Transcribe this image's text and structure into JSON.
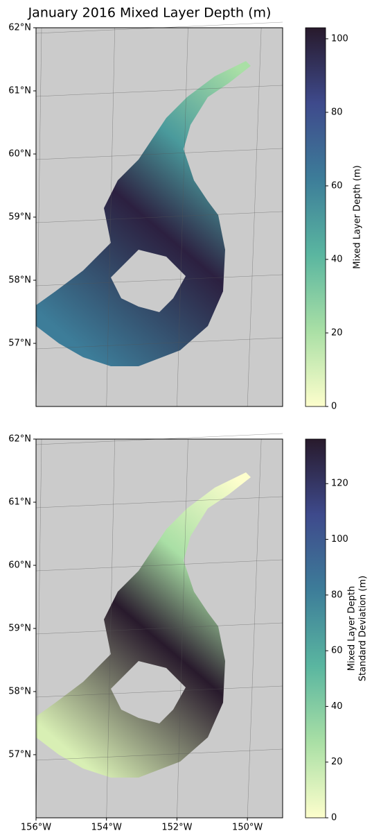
{
  "title": "January 2016 Mixed Layer Depth (m)",
  "panels": [
    {
      "ylim": [
        56,
        62
      ],
      "xlim": [
        -156,
        -149
      ],
      "yticks": [
        {
          "value": 62,
          "label": "62°N"
        },
        {
          "value": 61,
          "label": "61°N"
        },
        {
          "value": 60,
          "label": "60°N"
        },
        {
          "value": 59,
          "label": "59°N"
        },
        {
          "value": 58,
          "label": "58°N"
        },
        {
          "value": 57,
          "label": "57°N"
        }
      ],
      "xticks": [
        -156,
        -154,
        -152,
        -150
      ],
      "colorbar": {
        "label": [
          "Mixed Layer Depth (m)"
        ],
        "lim": [
          0,
          103
        ],
        "ticks": [
          0,
          20,
          40,
          60,
          80,
          100
        ]
      }
    },
    {
      "ylim": [
        56,
        62
      ],
      "xlim": [
        -156,
        -149
      ],
      "yticks": [
        {
          "value": 62,
          "label": "62°N"
        },
        {
          "value": 61,
          "label": "61°N"
        },
        {
          "value": 60,
          "label": "60°N"
        },
        {
          "value": 59,
          "label": "59°N"
        },
        {
          "value": 58,
          "label": "58°N"
        },
        {
          "value": 57,
          "label": "57°N"
        }
      ],
      "xticks": [
        {
          "value": -156,
          "label": "156°W"
        },
        {
          "value": -154,
          "label": "154°W"
        },
        {
          "value": -152,
          "label": "152°W"
        },
        {
          "value": -150,
          "label": "150°W"
        }
      ],
      "colorbar": {
        "label": [
          "Mixed Layer Depth",
          "Standard Deviation (m)"
        ],
        "lim": [
          0,
          136
        ],
        "ticks": [
          0,
          20,
          40,
          60,
          80,
          100,
          120
        ]
      }
    }
  ]
}
